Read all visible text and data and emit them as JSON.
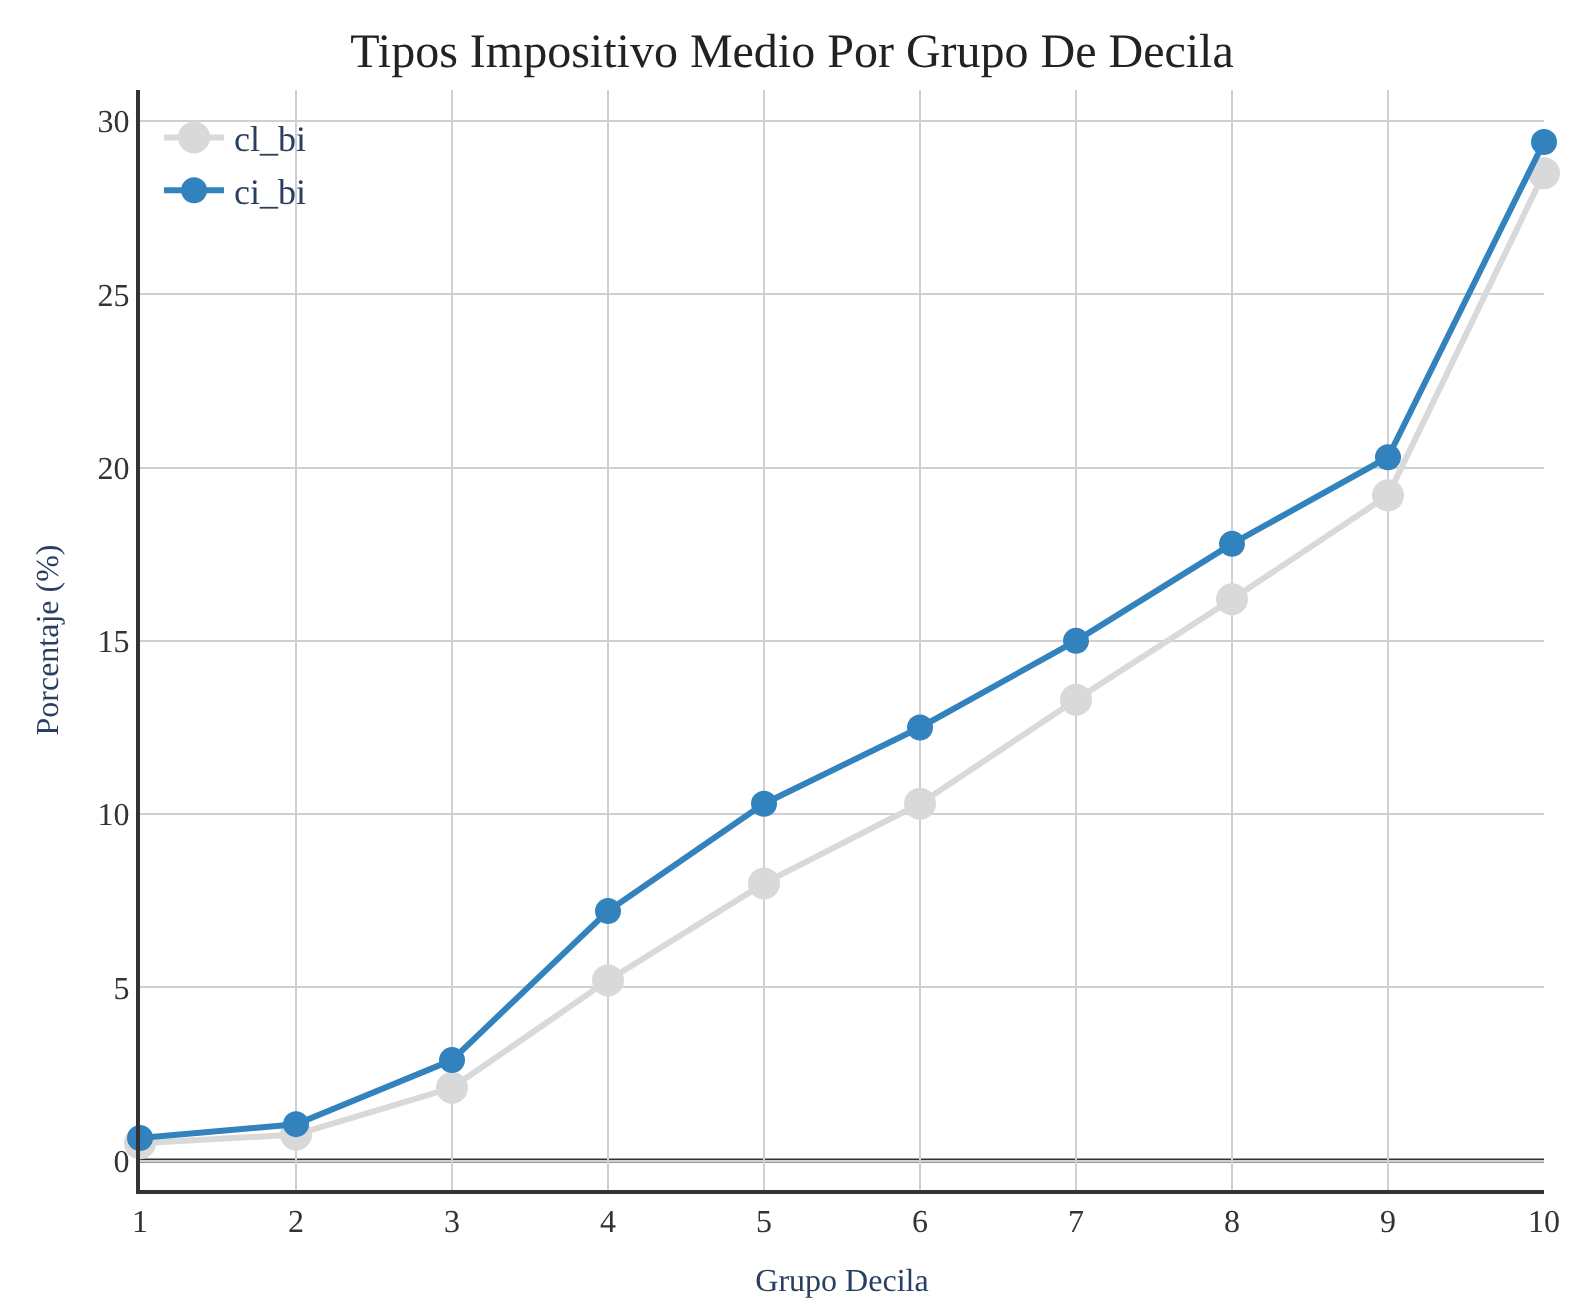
{
  "chart_data": {
    "type": "line",
    "title": "Tipos Impositivo Medio Por Grupo De Decila",
    "xlabel": "Grupo Decila",
    "ylabel": "Porcentaje (%)",
    "x": [
      1,
      2,
      3,
      4,
      5,
      6,
      7,
      8,
      9,
      10
    ],
    "series": [
      {
        "name": "cl_bi",
        "color": "#d9d9d9",
        "values": [
          0.5,
          0.75,
          2.1,
          5.2,
          8.0,
          10.3,
          13.3,
          16.2,
          19.2,
          28.5
        ]
      },
      {
        "name": "ci_bi",
        "color": "#3182bd",
        "values": [
          0.65,
          1.05,
          2.9,
          7.2,
          10.3,
          12.5,
          15.0,
          17.8,
          20.3,
          29.4
        ]
      }
    ],
    "xlim": [
      1,
      10
    ],
    "xticks": [
      1,
      2,
      3,
      4,
      5,
      6,
      7,
      8,
      9,
      10
    ],
    "ylim": [
      -0.85,
      30.9
    ],
    "yticks": [
      0,
      5,
      10,
      15,
      20,
      25,
      30
    ],
    "ref_lines": [
      {
        "axis": "y",
        "value": 0,
        "color": "#333333"
      }
    ],
    "grid": true,
    "legend": "top left",
    "marker": "circle",
    "line_style": "solid"
  }
}
